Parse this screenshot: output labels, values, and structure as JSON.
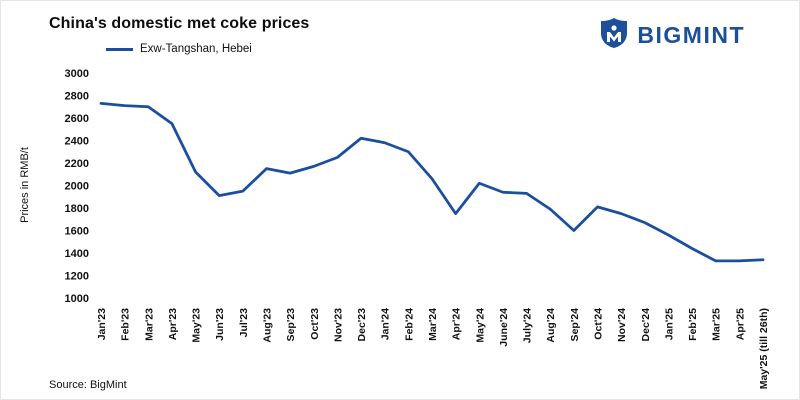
{
  "header": {
    "title": "China's domestic met coke prices",
    "legend": {
      "label": "Exw-Tangshan, Hebei"
    }
  },
  "logo": {
    "text": "BIGMINT",
    "color": "#1d4f9b"
  },
  "footer": {
    "source": "Source: BigMint"
  },
  "chart_data": {
    "type": "line",
    "title": "China's domestic met coke prices",
    "xlabel": "",
    "ylabel": "Prices in RMB/t",
    "ylim": [
      1000,
      3000
    ],
    "yticks": [
      1000,
      1200,
      1400,
      1600,
      1800,
      2000,
      2200,
      2400,
      2600,
      2800,
      3000
    ],
    "grid": false,
    "legend_position": "top-left",
    "categories": [
      "Jan'23",
      "Feb'23",
      "Mar'23",
      "Apr'23",
      "May'23",
      "Jun'23",
      "Jul'23",
      "Aug'23",
      "Sep'23",
      "Oct'23",
      "Nov'23",
      "Dec'23",
      "Jan'24",
      "Feb'24",
      "Mar'24",
      "Apr'24",
      "May'24",
      "June'24",
      "July'24",
      "Aug'24",
      "Sep'24",
      "Oct'24",
      "Nov'24",
      "Dec'24",
      "Jan'25",
      "Feb'25",
      "Mar'25",
      "Apr'25",
      "May'25 (till 26th)"
    ],
    "series": [
      {
        "name": "Exw-Tangshan, Hebei",
        "color": "#1b4f9e",
        "values": [
          2730,
          2710,
          2700,
          2550,
          2120,
          1910,
          1950,
          2150,
          2110,
          2170,
          2250,
          2420,
          2380,
          2300,
          2060,
          1750,
          2020,
          1940,
          1930,
          1790,
          1600,
          1810,
          1750,
          1670,
          1560,
          1440,
          1330,
          1330,
          1340
        ]
      }
    ]
  }
}
